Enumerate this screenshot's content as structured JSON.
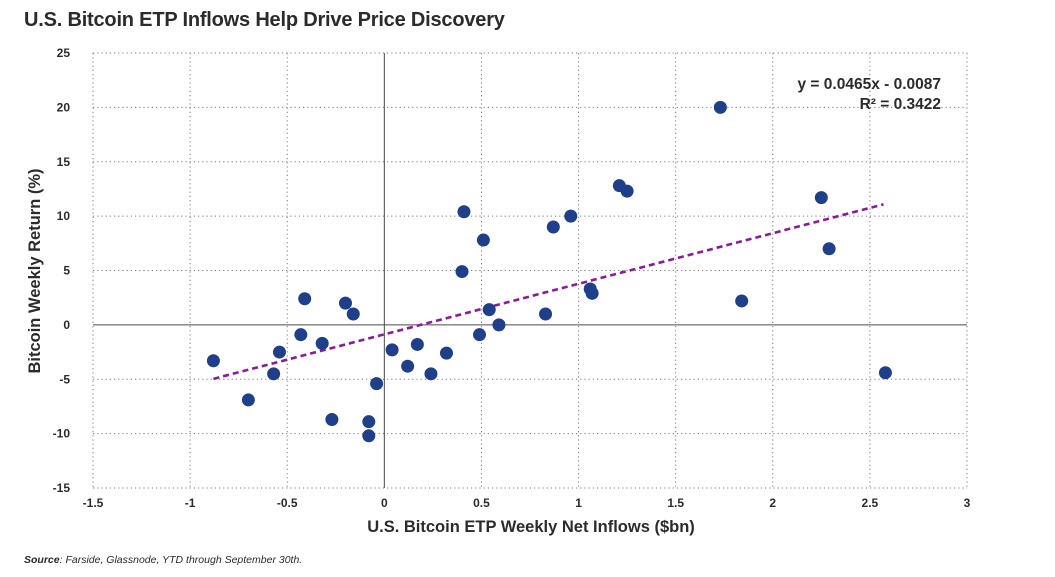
{
  "title": "U.S. Bitcoin ETP Inflows Help Drive Price Discovery",
  "source": {
    "label": "Source",
    "text": ": Farside, Glassnode, YTD through September 30th."
  },
  "colors": {
    "points": "#1f3f8a",
    "trendline": "#8b1a9c",
    "grid": "#7a7a7a",
    "axis": "#4a4a4a"
  },
  "chart_data": {
    "type": "scatter",
    "title": "U.S. Bitcoin ETP Inflows Help Drive Price Discovery",
    "xlabel": "U.S. Bitcoin ETP Weekly Net Inflows ($bn)",
    "ylabel": "Bitcoin Weekly Return (%)",
    "xlim": [
      -1.5,
      3
    ],
    "ylim": [
      -15,
      25
    ],
    "xticks": [
      -1.5,
      -1,
      -0.5,
      0,
      0.5,
      1,
      1.5,
      2,
      2.5,
      3
    ],
    "xtick_labels": [
      "-1.5",
      "-1",
      "-0.5",
      "0",
      "0.5",
      "1",
      "1.5",
      "2",
      "2.5",
      "3"
    ],
    "yticks": [
      25,
      20,
      15,
      10,
      5,
      0,
      -5,
      -10,
      -15
    ],
    "ytick_labels": [
      "25",
      "20",
      "15",
      "10",
      "5",
      "0",
      "-5",
      "-10",
      "-15"
    ],
    "grid": "dotted",
    "trendline": {
      "style": "dashed",
      "x_range": [
        -0.88,
        2.57
      ],
      "equation": "y = 0.0465x - 0.0087",
      "r_squared": "R² = 0.3422"
    },
    "points": [
      {
        "x": -0.88,
        "y": -3.3
      },
      {
        "x": -0.7,
        "y": -6.9
      },
      {
        "x": -0.57,
        "y": -4.5
      },
      {
        "x": -0.54,
        "y": -2.5
      },
      {
        "x": -0.43,
        "y": -0.9
      },
      {
        "x": -0.41,
        "y": 2.4
      },
      {
        "x": -0.32,
        "y": -1.7
      },
      {
        "x": -0.27,
        "y": -8.7
      },
      {
        "x": -0.2,
        "y": 2.0
      },
      {
        "x": -0.16,
        "y": 1.0
      },
      {
        "x": -0.08,
        "y": -8.9
      },
      {
        "x": -0.08,
        "y": -10.2
      },
      {
        "x": -0.04,
        "y": -5.4
      },
      {
        "x": 0.04,
        "y": -2.3
      },
      {
        "x": 0.12,
        "y": -3.8
      },
      {
        "x": 0.17,
        "y": -1.8
      },
      {
        "x": 0.24,
        "y": -4.5
      },
      {
        "x": 0.32,
        "y": -2.6
      },
      {
        "x": 0.4,
        "y": 4.9
      },
      {
        "x": 0.41,
        "y": 10.4
      },
      {
        "x": 0.49,
        "y": -0.9
      },
      {
        "x": 0.51,
        "y": 7.8
      },
      {
        "x": 0.54,
        "y": 1.4
      },
      {
        "x": 0.59,
        "y": 0.0
      },
      {
        "x": 0.83,
        "y": 1.0
      },
      {
        "x": 0.87,
        "y": 9.0
      },
      {
        "x": 0.96,
        "y": 10.0
      },
      {
        "x": 1.06,
        "y": 3.3
      },
      {
        "x": 1.07,
        "y": 2.9
      },
      {
        "x": 1.21,
        "y": 12.8
      },
      {
        "x": 1.25,
        "y": 12.3
      },
      {
        "x": 1.73,
        "y": 20.0
      },
      {
        "x": 1.84,
        "y": 2.2
      },
      {
        "x": 2.25,
        "y": 11.7
      },
      {
        "x": 2.29,
        "y": 7.0
      },
      {
        "x": 2.58,
        "y": -4.4
      }
    ]
  }
}
